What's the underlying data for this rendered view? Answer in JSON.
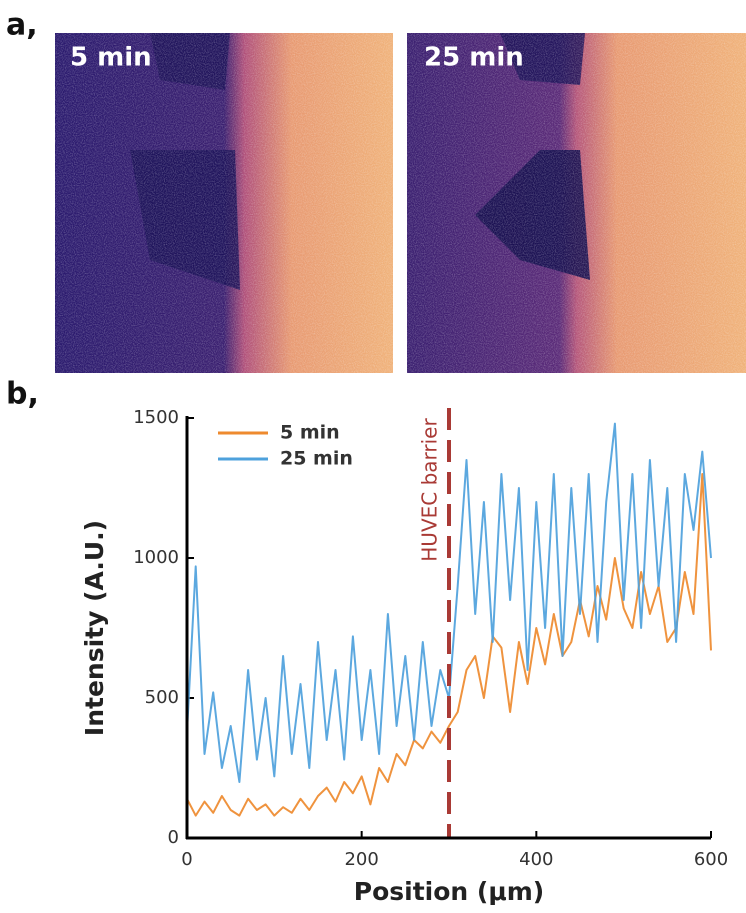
{
  "figure": {
    "panel_a_label": "a,",
    "image_labels": [
      "5 min",
      "25 min"
    ],
    "panel_b_label": "b,"
  },
  "chart_data": {
    "type": "line",
    "xlabel": "Position (μm)",
    "ylabel": "Intensity (A.U.)",
    "x": [
      0,
      10,
      20,
      30,
      40,
      50,
      60,
      70,
      80,
      90,
      100,
      110,
      120,
      130,
      140,
      150,
      160,
      170,
      180,
      190,
      200,
      210,
      220,
      230,
      240,
      250,
      260,
      270,
      280,
      290,
      300,
      310,
      320,
      330,
      340,
      350,
      360,
      370,
      380,
      390,
      400,
      410,
      420,
      430,
      440,
      450,
      460,
      470,
      480,
      490,
      500,
      510,
      520,
      530,
      540,
      550,
      560,
      570,
      580,
      590,
      600
    ],
    "series": [
      {
        "name": "5 min",
        "color": "#ee8a2e",
        "values": [
          140,
          80,
          130,
          90,
          150,
          100,
          80,
          140,
          100,
          120,
          80,
          110,
          90,
          140,
          100,
          150,
          180,
          130,
          200,
          160,
          220,
          120,
          250,
          200,
          300,
          260,
          350,
          320,
          380,
          340,
          400,
          450,
          600,
          650,
          500,
          720,
          680,
          450,
          700,
          550,
          750,
          620,
          800,
          650,
          700,
          850,
          720,
          900,
          780,
          1000,
          820,
          750,
          950,
          800,
          900,
          700,
          750,
          950,
          800,
          1300,
          670
        ]
      },
      {
        "name": "25 min",
        "color": "#4ea1dc",
        "values": [
          380,
          970,
          300,
          520,
          250,
          400,
          200,
          600,
          280,
          500,
          220,
          650,
          300,
          550,
          250,
          700,
          350,
          600,
          280,
          720,
          350,
          600,
          300,
          800,
          400,
          650,
          350,
          700,
          400,
          600,
          500,
          900,
          1350,
          800,
          1200,
          700,
          1300,
          850,
          1250,
          600,
          1200,
          750,
          1300,
          650,
          1250,
          800,
          1300,
          700,
          1200,
          1480,
          850,
          1300,
          750,
          1350,
          900,
          1250,
          700,
          1300,
          1100,
          1380,
          1000
        ]
      }
    ],
    "annotations": [
      {
        "text": "HUVEC barrier",
        "x": 300,
        "color": "#a93a35"
      }
    ],
    "xlim": [
      0,
      600
    ],
    "xticks": [
      0,
      200,
      400,
      600
    ],
    "ylim": [
      0,
      1500
    ],
    "yticks": [
      0,
      500,
      1000,
      1500
    ],
    "legend": "upper left",
    "grid": false
  }
}
